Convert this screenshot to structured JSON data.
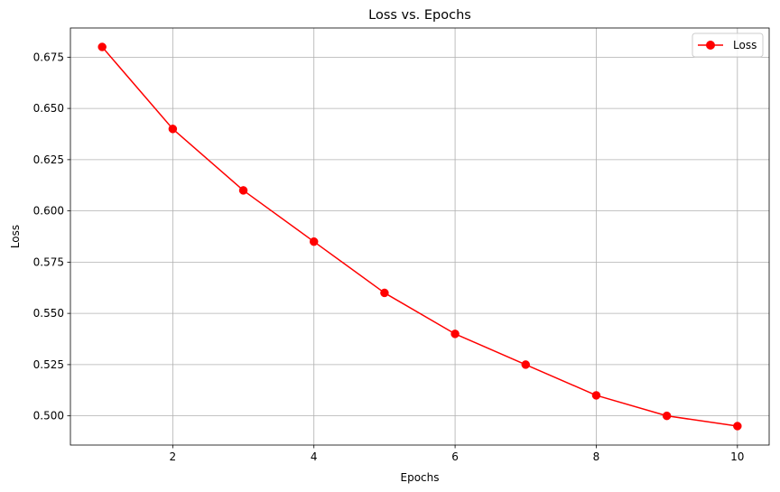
{
  "chart_data": {
    "type": "line",
    "title": "Loss vs. Epochs",
    "xlabel": "Epochs",
    "ylabel": "Loss",
    "x": [
      1,
      2,
      3,
      4,
      5,
      6,
      7,
      8,
      9,
      10
    ],
    "series": [
      {
        "name": "Loss",
        "values": [
          0.68,
          0.64,
          0.61,
          0.585,
          0.56,
          0.54,
          0.525,
          0.51,
          0.5,
          0.495
        ],
        "color": "#ff0000",
        "marker": "circle"
      }
    ],
    "xlim": [
      0.55,
      10.45
    ],
    "ylim": [
      0.48575,
      0.68925
    ],
    "xticks": [
      2,
      4,
      6,
      8,
      10
    ],
    "yticks": [
      0.5,
      0.525,
      0.55,
      0.575,
      0.6,
      0.625,
      0.65,
      0.675
    ],
    "ytick_labels": [
      "0.500",
      "0.525",
      "0.550",
      "0.575",
      "0.600",
      "0.625",
      "0.650",
      "0.675"
    ],
    "grid": true,
    "legend_position": "top-right"
  }
}
